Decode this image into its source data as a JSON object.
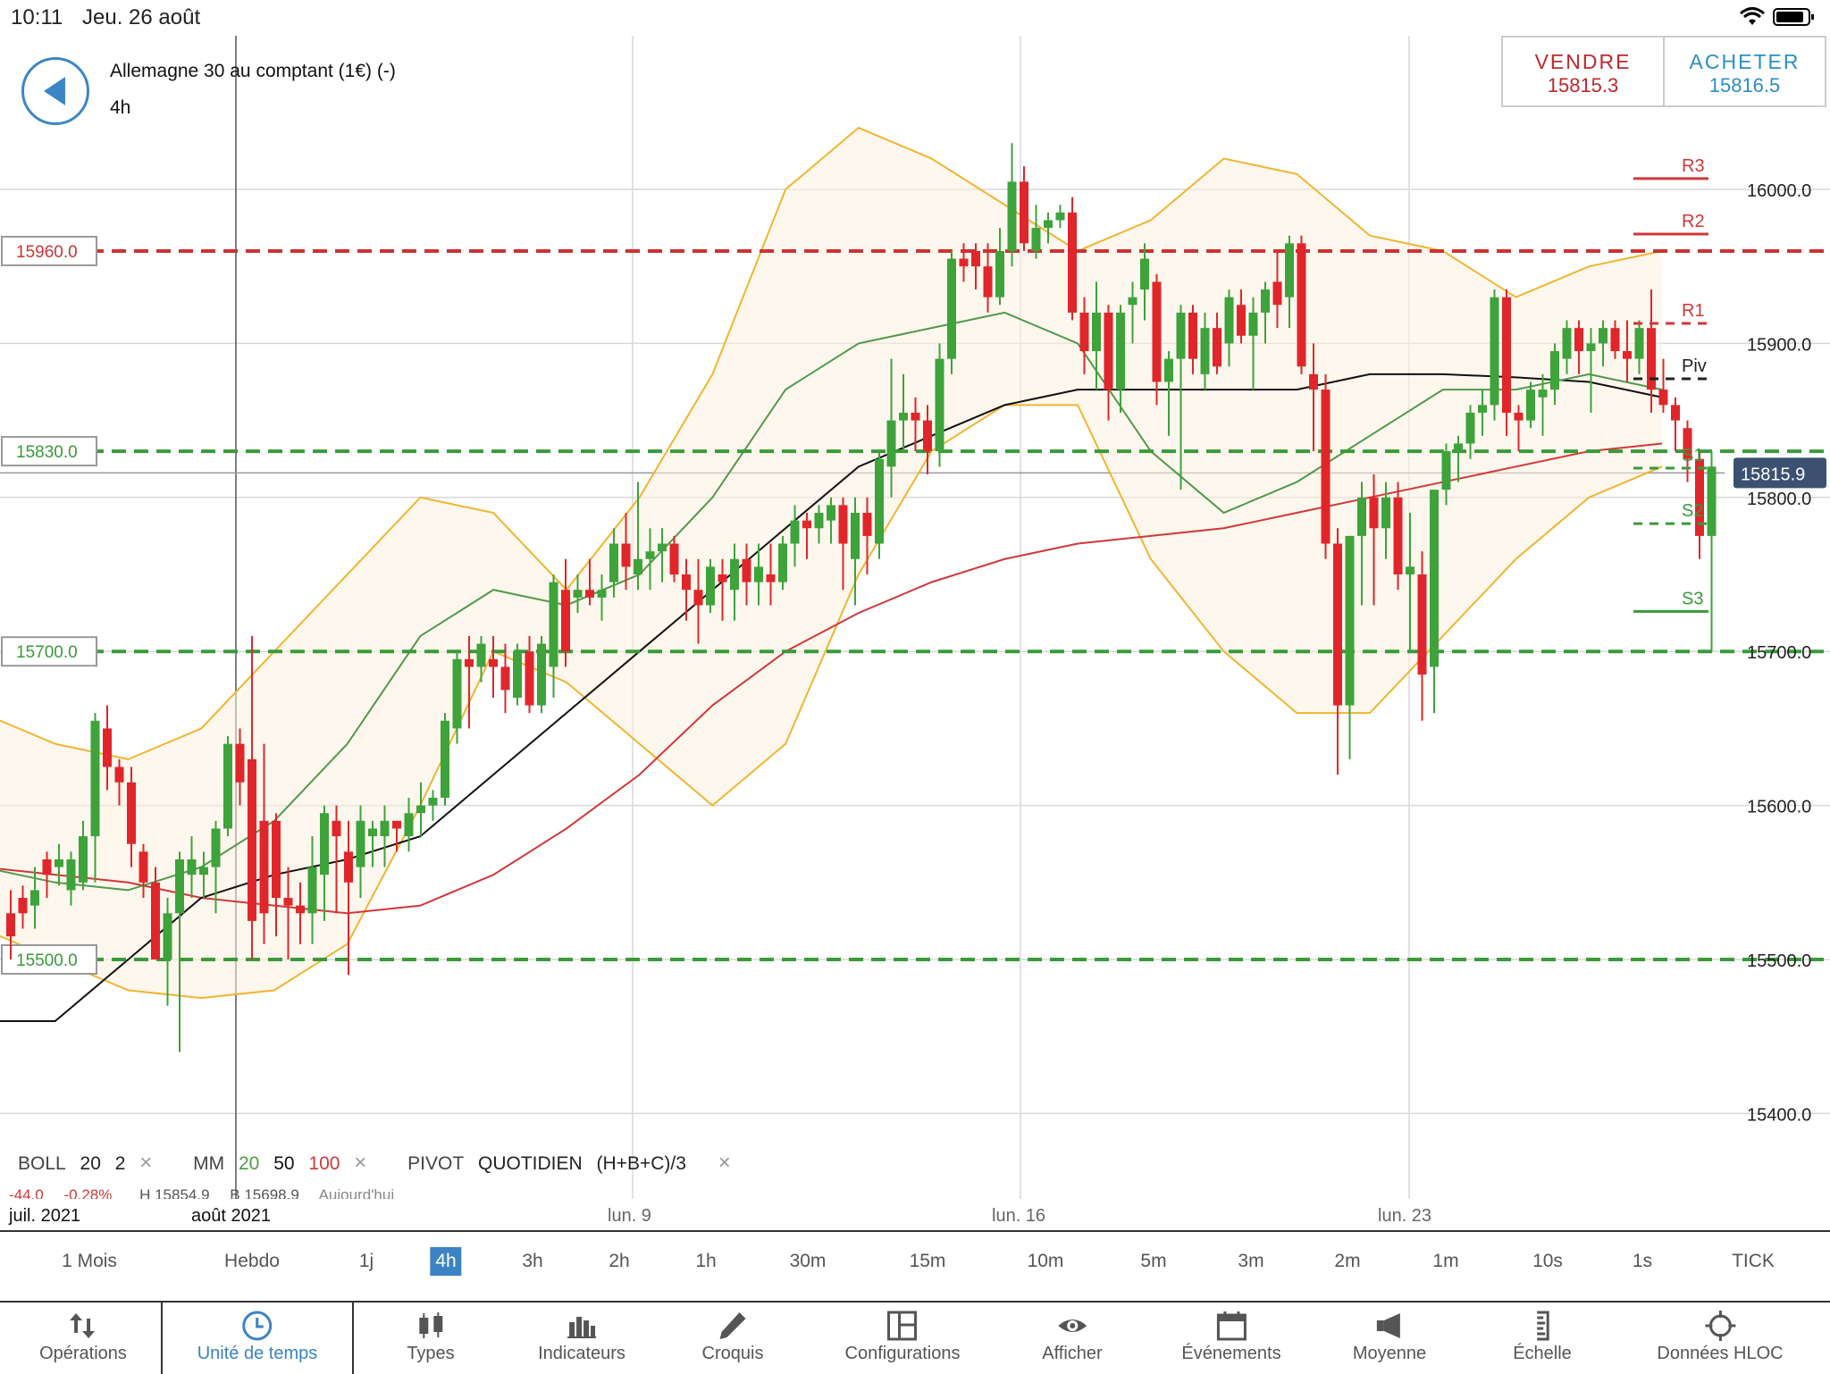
{
  "status_bar": {
    "time": "10:11",
    "date": "Jeu. 26 août"
  },
  "instrument": {
    "name": "Allemagne 30 au comptant (1€) (-)",
    "timeframe": "4h"
  },
  "trade": {
    "sell_label": "VENDRE",
    "sell_price": "15815.3",
    "buy_label": "ACHETER",
    "buy_price": "15816.5"
  },
  "indicators_legend": {
    "boll_label": "BOLL",
    "boll_p1": "20",
    "boll_p2": "2",
    "mm_label": "MM",
    "mm_p1": "20",
    "mm_p2": "50",
    "mm_p3": "100",
    "pivot_label": "PIVOT",
    "pivot_mode": "QUOTIDIEN",
    "pivot_formula": "(H+B+C)/3",
    "close_glyph": "×"
  },
  "info_row": {
    "change": "-44.0",
    "change_pct": "-0.28%",
    "high": "H 15854.9",
    "low": "B 15698.9",
    "period": "Aujourd'hui"
  },
  "date_axis": {
    "d1": "juil. 2021",
    "d2": "août 2021",
    "d3": "lun. 9",
    "d4": "lun. 16",
    "d5": "lun. 23"
  },
  "timeframes": [
    "1 Mois",
    "Hebdo",
    "1j",
    "4h",
    "3h",
    "2h",
    "1h",
    "30m",
    "15m",
    "10m",
    "5m",
    "3m",
    "2m",
    "1m",
    "10s",
    "1s",
    "TICK"
  ],
  "active_timeframe": "4h",
  "toolbar": {
    "operations": "Opérations",
    "timeunit": "Unité de temps",
    "types": "Types",
    "indicators": "Indicateurs",
    "sketch": "Croquis",
    "configs": "Configurations",
    "display": "Afficher",
    "events": "Événements",
    "average": "Moyenne",
    "scale": "Échelle",
    "hloc": "Données HLOC"
  },
  "colors": {
    "up": "#3da33a",
    "down": "#e0262b",
    "accent": "#3b83c4",
    "boll": "#f0b530",
    "ma20": "#4f9a4a",
    "ma50": "#111111",
    "ma100": "#d2373a"
  },
  "chart_data": {
    "type": "candlestick",
    "y_tick_labels": [
      "16000.0",
      "15900.0",
      "15800.0",
      "15700.0",
      "15600.0",
      "15500.0",
      "15400.0"
    ],
    "ylim": [
      15350,
      16080
    ],
    "current_price": "15815.9",
    "horizontal_levels": [
      {
        "label": "15960.0",
        "value": 15960,
        "color": "#cc3333"
      },
      {
        "label": "15830.0",
        "value": 15830,
        "color": "#3a9a3a"
      },
      {
        "label": "15700.0",
        "value": 15700,
        "color": "#3a9a3a"
      },
      {
        "label": "15500.0",
        "value": 15500,
        "color": "#3a9a3a"
      }
    ],
    "pivots": [
      {
        "label": "R3",
        "value": 16007
      },
      {
        "label": "R2",
        "value": 15971
      },
      {
        "label": "R1",
        "value": 15913
      },
      {
        "label": "Piv",
        "value": 15877
      },
      {
        "label": "S1",
        "value": 15819
      },
      {
        "label": "S2",
        "value": 15783
      },
      {
        "label": "S3",
        "value": 15726
      }
    ],
    "candles": [
      [
        15530,
        15545,
        15500,
        15515
      ],
      [
        15540,
        15548,
        15520,
        15530
      ],
      [
        15535,
        15560,
        15520,
        15545
      ],
      [
        15565,
        15570,
        15540,
        15555
      ],
      [
        15560,
        15575,
        15548,
        15565
      ],
      [
        15545,
        15570,
        15535,
        15565
      ],
      [
        15550,
        15590,
        15545,
        15580
      ],
      [
        15580,
        15660,
        15550,
        15655
      ],
      [
        15650,
        15665,
        15610,
        15625
      ],
      [
        15625,
        15630,
        15600,
        15615
      ],
      [
        15615,
        15625,
        15560,
        15575
      ],
      [
        15570,
        15575,
        15540,
        15550
      ],
      [
        15550,
        15560,
        15500,
        15500
      ],
      [
        15500,
        15540,
        15470,
        15530
      ],
      [
        15530,
        15570,
        15440,
        15565
      ],
      [
        15555,
        15580,
        15540,
        15565
      ],
      [
        15555,
        15570,
        15540,
        15560
      ],
      [
        15560,
        15590,
        15530,
        15585
      ],
      [
        15585,
        15645,
        15580,
        15640
      ],
      [
        15640,
        15650,
        15600,
        15615
      ],
      [
        15630,
        15710,
        15500,
        15525
      ],
      [
        15590,
        15640,
        15510,
        15530
      ],
      [
        15590,
        15595,
        15515,
        15540
      ],
      [
        15540,
        15560,
        15500,
        15535
      ],
      [
        15535,
        15550,
        15510,
        15530
      ],
      [
        15530,
        15580,
        15510,
        15560
      ],
      [
        15555,
        15600,
        15525,
        15595
      ],
      [
        15590,
        15600,
        15530,
        15580
      ],
      [
        15570,
        15590,
        15490,
        15550
      ],
      [
        15560,
        15600,
        15540,
        15590
      ],
      [
        15580,
        15590,
        15560,
        15585
      ],
      [
        15580,
        15600,
        15560,
        15590
      ],
      [
        15590,
        15590,
        15570,
        15585
      ],
      [
        15580,
        15605,
        15570,
        15595
      ],
      [
        15595,
        15615,
        15580,
        15600
      ],
      [
        15600,
        15610,
        15590,
        15605
      ],
      [
        15605,
        15660,
        15600,
        15655
      ],
      [
        15650,
        15700,
        15640,
        15695
      ],
      [
        15695,
        15710,
        15650,
        15690
      ],
      [
        15690,
        15710,
        15680,
        15705
      ],
      [
        15695,
        15710,
        15670,
        15690
      ],
      [
        15690,
        15705,
        15660,
        15675
      ],
      [
        15670,
        15705,
        15665,
        15700
      ],
      [
        15700,
        15710,
        15660,
        15665
      ],
      [
        15665,
        15710,
        15660,
        15705
      ],
      [
        15690,
        15750,
        15670,
        15745
      ],
      [
        15740,
        15760,
        15690,
        15700
      ],
      [
        15735,
        15750,
        15725,
        15740
      ],
      [
        15740,
        15760,
        15730,
        15735
      ],
      [
        15735,
        15750,
        15720,
        15740
      ],
      [
        15745,
        15780,
        15735,
        15770
      ],
      [
        15770,
        15790,
        15740,
        15755
      ],
      [
        15750,
        15810,
        15740,
        15760
      ],
      [
        15760,
        15780,
        15740,
        15765
      ],
      [
        15765,
        15780,
        15745,
        15770
      ],
      [
        15770,
        15775,
        15745,
        15750
      ],
      [
        15750,
        15760,
        15720,
        15740
      ],
      [
        15740,
        15760,
        15705,
        15730
      ],
      [
        15730,
        15760,
        15725,
        15755
      ],
      [
        15750,
        15760,
        15720,
        15745
      ],
      [
        15740,
        15770,
        15720,
        15760
      ],
      [
        15760,
        15770,
        15730,
        15745
      ],
      [
        15745,
        15770,
        15730,
        15755
      ],
      [
        15750,
        15770,
        15730,
        15745
      ],
      [
        15745,
        15775,
        15740,
        15770
      ],
      [
        15770,
        15795,
        15755,
        15785
      ],
      [
        15785,
        15790,
        15760,
        15780
      ],
      [
        15780,
        15795,
        15770,
        15790
      ],
      [
        15785,
        15800,
        15770,
        15795
      ],
      [
        15795,
        15800,
        15740,
        15770
      ],
      [
        15760,
        15800,
        15730,
        15790
      ],
      [
        15790,
        15800,
        15750,
        15775
      ],
      [
        15770,
        15830,
        15760,
        15825
      ],
      [
        15820,
        15890,
        15800,
        15850
      ],
      [
        15850,
        15880,
        15830,
        15855
      ],
      [
        15855,
        15865,
        15830,
        15850
      ],
      [
        15850,
        15860,
        15815,
        15830
      ],
      [
        15830,
        15900,
        15820,
        15890
      ],
      [
        15890,
        15960,
        15880,
        15955
      ],
      [
        15955,
        15965,
        15940,
        15950
      ],
      [
        15960,
        15965,
        15935,
        15950
      ],
      [
        15950,
        15965,
        15920,
        15930
      ],
      [
        15930,
        15975,
        15925,
        15960
      ],
      [
        15960,
        16030,
        15950,
        16005
      ],
      [
        16005,
        16015,
        15960,
        15965
      ],
      [
        15960,
        15990,
        15955,
        15975
      ],
      [
        15975,
        15985,
        15965,
        15980
      ],
      [
        15980,
        15990,
        15975,
        15985
      ],
      [
        15985,
        15995,
        15915,
        15920
      ],
      [
        15920,
        15930,
        15880,
        15895
      ],
      [
        15895,
        15940,
        15870,
        15920
      ],
      [
        15920,
        15925,
        15850,
        15870
      ],
      [
        15870,
        15925,
        15855,
        15920
      ],
      [
        15925,
        15940,
        15900,
        15930
      ],
      [
        15935,
        15965,
        15915,
        15955
      ],
      [
        15940,
        15945,
        15860,
        15875
      ],
      [
        15875,
        15895,
        15840,
        15890
      ],
      [
        15890,
        15925,
        15805,
        15920
      ],
      [
        15920,
        15925,
        15880,
        15890
      ],
      [
        15880,
        15920,
        15870,
        15910
      ],
      [
        15910,
        15920,
        15880,
        15885
      ],
      [
        15900,
        15935,
        15885,
        15930
      ],
      [
        15925,
        15935,
        15900,
        15905
      ],
      [
        15905,
        15930,
        15870,
        15920
      ],
      [
        15920,
        15940,
        15900,
        15935
      ],
      [
        15940,
        15960,
        15910,
        15925
      ],
      [
        15930,
        15970,
        15910,
        15965
      ],
      [
        15965,
        15970,
        15880,
        15885
      ],
      [
        15880,
        15900,
        15830,
        15870
      ],
      [
        15870,
        15880,
        15760,
        15770
      ],
      [
        15770,
        15780,
        15620,
        15665
      ],
      [
        15665,
        15775,
        15630,
        15775
      ],
      [
        15775,
        15810,
        15730,
        15800
      ],
      [
        15800,
        15815,
        15730,
        15780
      ],
      [
        15780,
        15810,
        15760,
        15800
      ],
      [
        15800,
        15810,
        15740,
        15750
      ],
      [
        15750,
        15790,
        15700,
        15755
      ],
      [
        15750,
        15765,
        15655,
        15685
      ],
      [
        15690,
        15800,
        15660,
        15805
      ],
      [
        15805,
        15835,
        15795,
        15830
      ],
      [
        15830,
        15840,
        15810,
        15835
      ],
      [
        15835,
        15860,
        15825,
        15855
      ],
      [
        15855,
        15870,
        15840,
        15860
      ],
      [
        15860,
        15935,
        15850,
        15930
      ],
      [
        15930,
        15935,
        15840,
        15855
      ],
      [
        15855,
        15860,
        15830,
        15850
      ],
      [
        15850,
        15875,
        15845,
        15870
      ],
      [
        15865,
        15880,
        15840,
        15870
      ],
      [
        15870,
        15900,
        15860,
        15895
      ],
      [
        15890,
        15915,
        15880,
        15910
      ],
      [
        15910,
        15915,
        15880,
        15895
      ],
      [
        15895,
        15910,
        15855,
        15900
      ],
      [
        15900,
        15915,
        15885,
        15910
      ],
      [
        15910,
        15915,
        15890,
        15895
      ],
      [
        15895,
        15915,
        15875,
        15890
      ],
      [
        15890,
        15915,
        15880,
        15910
      ],
      [
        15910,
        15935,
        15855,
        15870
      ],
      [
        15870,
        15890,
        15855,
        15860
      ],
      [
        15860,
        15865,
        15830,
        15850
      ],
      [
        15845,
        15850,
        15810,
        15825
      ],
      [
        15825,
        15830,
        15760,
        15775
      ],
      [
        15775,
        15830,
        15700,
        15820
      ]
    ],
    "bollinger_upper": [
      15660,
      15640,
      15630,
      15650,
      15700,
      15750,
      15800,
      15790,
      15740,
      15800,
      15880,
      16000,
      16040,
      16020,
      15990,
      15960,
      15980,
      16020,
      16010,
      15970,
      15960,
      15930,
      15950,
      15960
    ],
    "bollinger_lower": [
      15520,
      15500,
      15480,
      15475,
      15480,
      15510,
      15600,
      15700,
      15680,
      15640,
      15600,
      15640,
      15750,
      15830,
      15860,
      15860,
      15760,
      15700,
      15660,
      15660,
      15710,
      15760,
      15800,
      15820
    ],
    "ma20": [
      15560,
      15550,
      15545,
      15560,
      15590,
      15640,
      15710,
      15740,
      15730,
      15750,
      15800,
      15870,
      15900,
      15910,
      15920,
      15900,
      15830,
      15790,
      15810,
      15840,
      15870,
      15870,
      15880,
      15870
    ],
    "ma50": [
      15460,
      15460,
      15500,
      15540,
      15555,
      15565,
      15580,
      15620,
      15660,
      15700,
      15740,
      15780,
      15820,
      15840,
      15860,
      15870,
      15870,
      15870,
      15870,
      15880,
      15880,
      15878,
      15875,
      15865
    ],
    "ma100": [
      15560,
      15555,
      15550,
      15540,
      15535,
      15530,
      15535,
      15555,
      15585,
      15620,
      15665,
      15700,
      15725,
      15745,
      15760,
      15770,
      15775,
      15780,
      15790,
      15800,
      15810,
      15820,
      15830,
      15835
    ]
  }
}
